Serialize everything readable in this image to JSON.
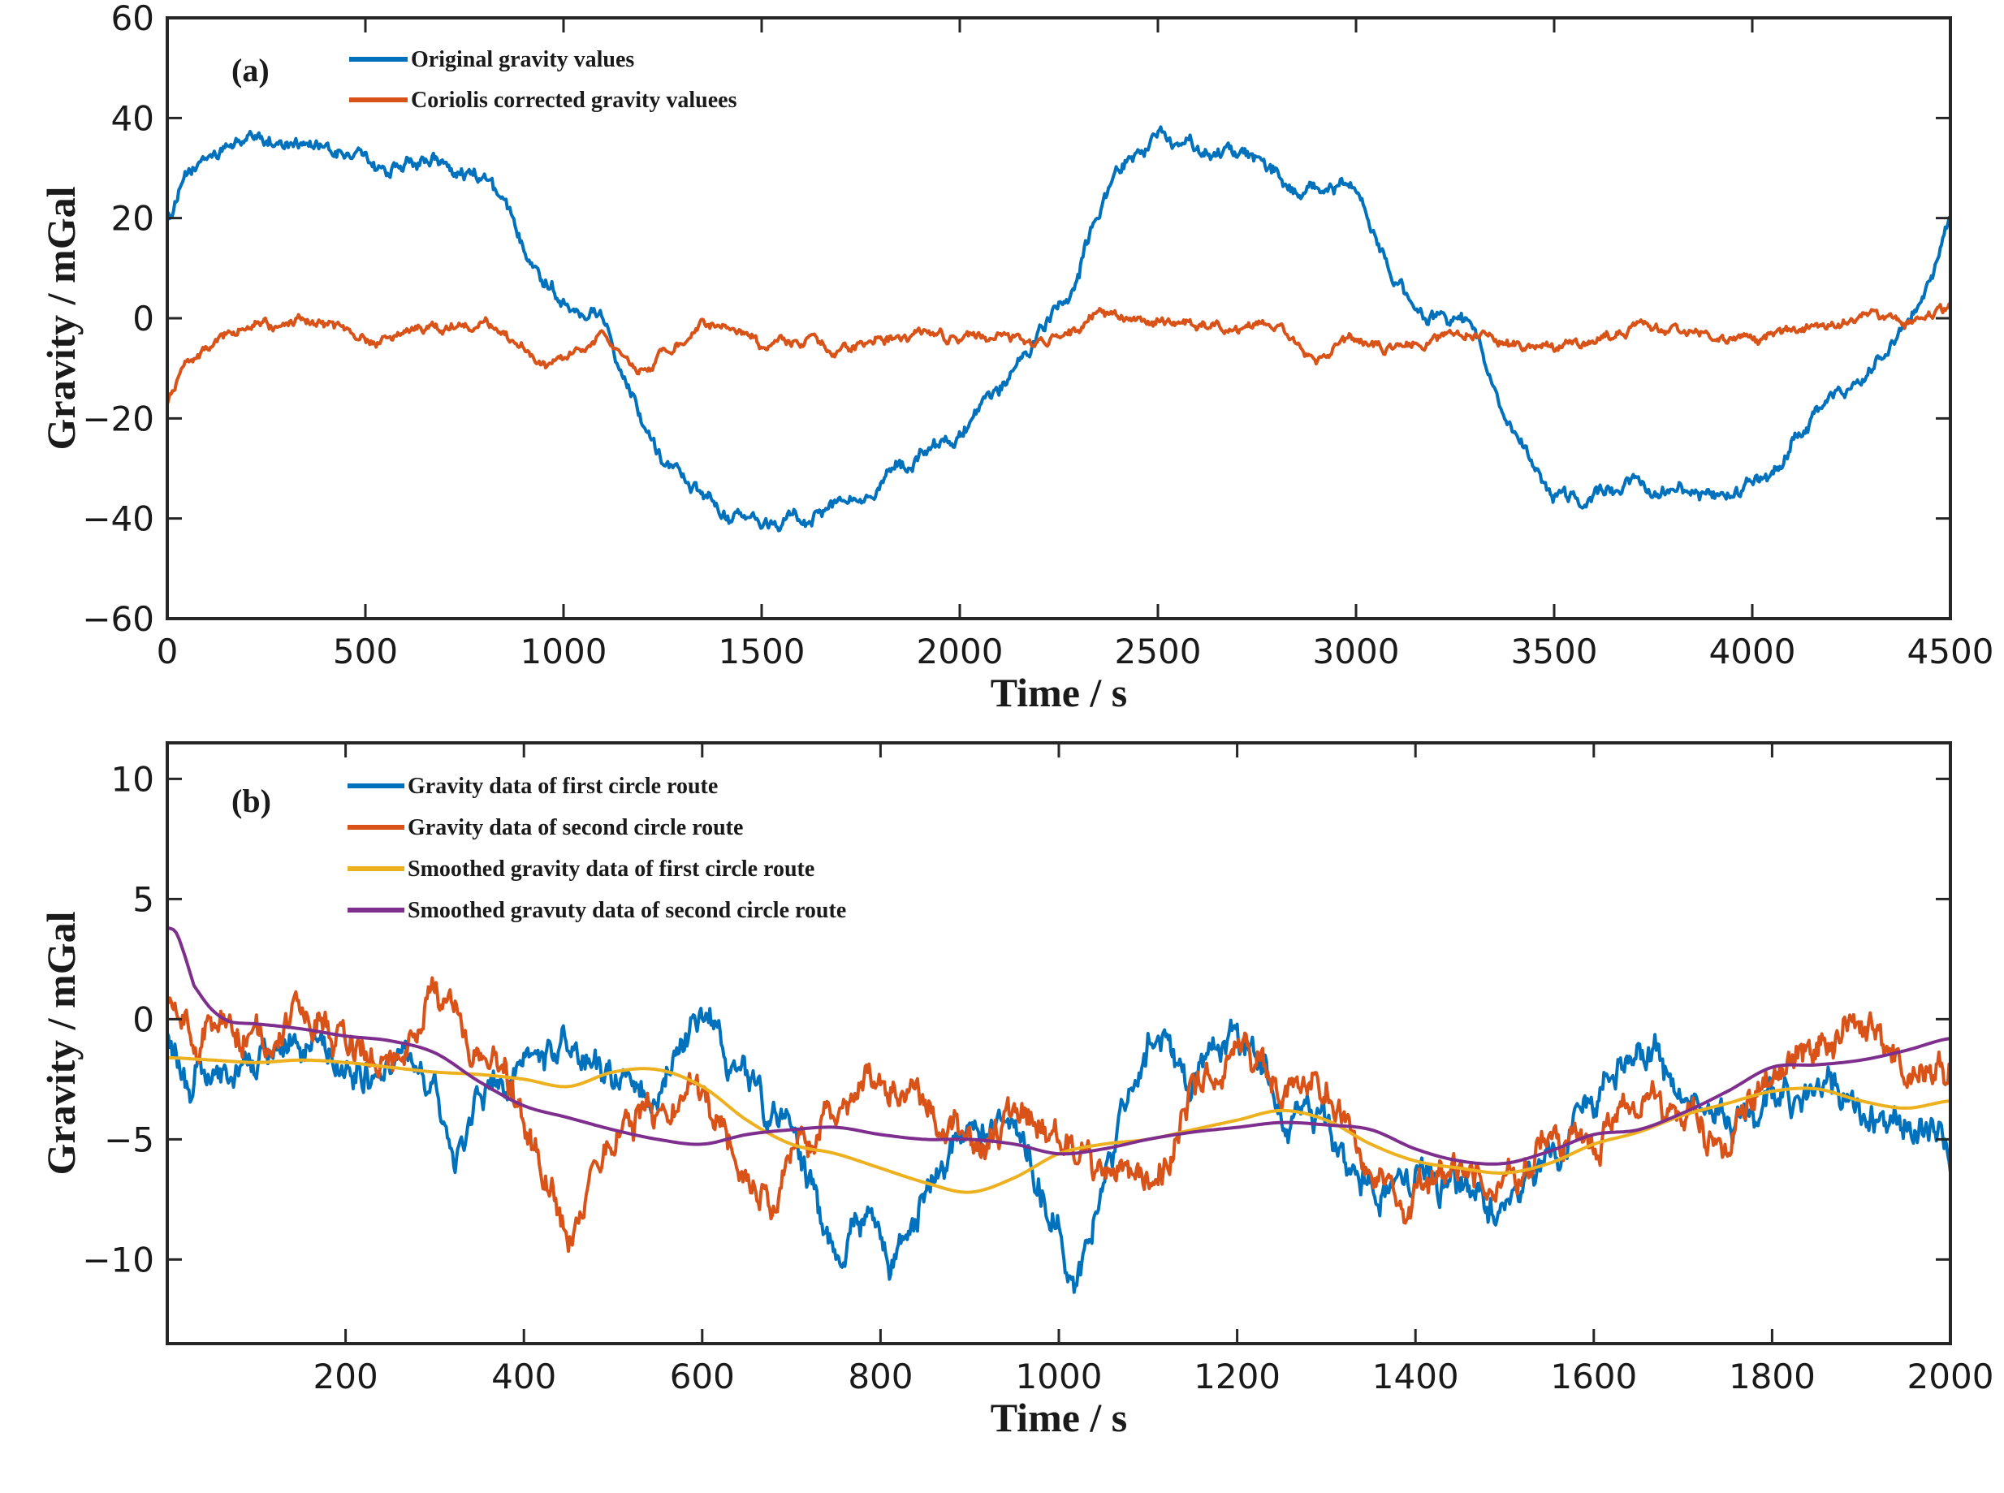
{
  "chart_data": [
    {
      "type": "line",
      "panel_label": "(a)",
      "title": "",
      "xlabel": "Time / s",
      "ylabel": "Gravity / mGal",
      "xlim": [
        0,
        4500
      ],
      "ylim": [
        -60,
        60
      ],
      "xticks": [
        0,
        500,
        1000,
        1500,
        2000,
        2500,
        3000,
        3500,
        4000,
        4500
      ],
      "yticks": [
        -60,
        -40,
        -20,
        0,
        20,
        40,
        60
      ],
      "legend_position": "top-left",
      "series": [
        {
          "name": "Original gravity values",
          "color": "#0072BD",
          "noise": 1.6,
          "x": [
            0,
            50,
            100,
            200,
            300,
            350,
            400,
            500,
            550,
            600,
            700,
            800,
            850,
            900,
            950,
            1000,
            1050,
            1100,
            1150,
            1200,
            1250,
            1300,
            1350,
            1400,
            1500,
            1550,
            1600,
            1700,
            1800,
            1900,
            2000,
            2050,
            2100,
            2150,
            2200,
            2250,
            2300,
            2350,
            2400,
            2500,
            2600,
            2700,
            2800,
            2850,
            2900,
            3000,
            3050,
            3100,
            3150,
            3200,
            3250,
            3300,
            3350,
            3400,
            3450,
            3500,
            3550,
            3600,
            3700,
            3750,
            3800,
            3900,
            4000,
            4050,
            4100,
            4150,
            4200,
            4250,
            4300,
            4350,
            4400,
            4450,
            4500
          ],
          "values": [
            20,
            28,
            32,
            36,
            35,
            36,
            33,
            32,
            29,
            31,
            31,
            28,
            22,
            15,
            8,
            4,
            2,
            0,
            -10,
            -20,
            -28,
            -31,
            -36,
            -39,
            -42,
            -41,
            -40,
            -37,
            -32,
            -28,
            -24,
            -20,
            -15,
            -8,
            -3,
            2,
            10,
            22,
            30,
            36,
            34,
            33,
            29,
            25,
            26,
            25,
            17,
            8,
            2,
            0,
            0,
            -3,
            -14,
            -24,
            -30,
            -35,
            -37,
            -36,
            -32,
            -35,
            -34,
            -36,
            -34,
            -32,
            -25,
            -20,
            -15,
            -14,
            -10,
            -5,
            0,
            8,
            20
          ]
        },
        {
          "name": "Coriolis corrected gravity valuees",
          "color": "#D95319",
          "noise": 1.1,
          "x": [
            0,
            50,
            100,
            200,
            300,
            350,
            400,
            500,
            600,
            700,
            800,
            900,
            950,
            1000,
            1100,
            1150,
            1200,
            1300,
            1350,
            1400,
            1500,
            1600,
            1700,
            1800,
            1900,
            2000,
            2100,
            2200,
            2300,
            2350,
            2400,
            2500,
            2600,
            2700,
            2800,
            2900,
            3000,
            3100,
            3200,
            3300,
            3400,
            3500,
            3600,
            3700,
            3800,
            3900,
            4000,
            4100,
            4200,
            4300,
            4400,
            4500
          ],
          "values": [
            -17,
            -9,
            -6,
            -2,
            -1,
            0,
            -1,
            -5,
            -2,
            -2,
            -1,
            -6,
            -10,
            -9,
            -3,
            -8,
            -10,
            -4,
            -1,
            -2,
            -5,
            -5,
            -6,
            -4,
            -3,
            -4,
            -3,
            -5,
            -2,
            3,
            0,
            -1,
            -1,
            -2,
            -1,
            -8,
            -4,
            -6,
            -4,
            -3,
            -5,
            -6,
            -4,
            -2,
            -2,
            -4,
            -4,
            -2,
            -1,
            0,
            -1,
            2
          ]
        }
      ]
    },
    {
      "type": "line",
      "panel_label": "(b)",
      "title": "",
      "xlabel": "Time / s",
      "ylabel": "Gravity / mGal",
      "xlim": [
        0,
        2000
      ],
      "ylim": [
        -13.5,
        11.5
      ],
      "xticks": [
        200,
        400,
        600,
        800,
        1000,
        1200,
        1400,
        1600,
        1800,
        2000
      ],
      "yticks": [
        -10,
        -5,
        0,
        5,
        10
      ],
      "legend_position": "top-left",
      "series": [
        {
          "name": "Gravity data of first circle route",
          "color": "#0072BD",
          "noise": 0.8,
          "x": [
            0,
            25,
            50,
            100,
            150,
            200,
            250,
            300,
            320,
            350,
            400,
            450,
            500,
            550,
            600,
            650,
            700,
            720,
            750,
            780,
            810,
            850,
            900,
            950,
            1000,
            1020,
            1040,
            1080,
            1110,
            1140,
            1180,
            1200,
            1250,
            1300,
            1350,
            1400,
            1450,
            1500,
            1550,
            1600,
            1650,
            1700,
            1750,
            1800,
            1850,
            1900,
            1950,
            2000
          ],
          "values": [
            -1,
            -2.5,
            -2,
            -2,
            -1,
            -2,
            -1.5,
            -3,
            -6,
            -3,
            -1.5,
            -1,
            -2,
            -3,
            0,
            -2,
            -5,
            -7,
            -10,
            -8,
            -10,
            -7,
            -5,
            -4,
            -9,
            -11,
            -8,
            -3,
            0,
            -3,
            -1,
            -1,
            -3,
            -5,
            -7,
            -6.5,
            -7,
            -8,
            -6,
            -4,
            -1,
            -3,
            -4,
            -3,
            -3,
            -4,
            -4,
            -5.5
          ]
        },
        {
          "name": "Gravity data of second circle route",
          "color": "#D95319",
          "noise": 0.8,
          "x": [
            0,
            25,
            50,
            100,
            150,
            200,
            250,
            300,
            320,
            350,
            380,
            400,
            420,
            450,
            470,
            500,
            550,
            600,
            650,
            680,
            700,
            750,
            800,
            850,
            900,
            950,
            1000,
            1050,
            1100,
            1150,
            1200,
            1250,
            1300,
            1350,
            1400,
            1450,
            1500,
            1550,
            1600,
            1650,
            1700,
            1750,
            1800,
            1850,
            1900,
            1950,
            2000
          ],
          "values": [
            1,
            -0.5,
            0,
            -1,
            0,
            -1,
            -2,
            1.5,
            0,
            -1,
            -2,
            -4,
            -6,
            -9,
            -7,
            -5,
            -4,
            -3,
            -6,
            -8,
            -5,
            -4,
            -2,
            -4,
            -5,
            -4,
            -5,
            -6,
            -7,
            -3,
            -1,
            -3,
            -3,
            -7,
            -7,
            -6,
            -7,
            -5,
            -5,
            -4,
            -4,
            -5,
            -2,
            -1,
            0,
            -2,
            -2
          ]
        },
        {
          "name": "Smoothed gravity data of first circle route",
          "color": "#EDB120",
          "noise": 0,
          "x": [
            0,
            50,
            100,
            150,
            200,
            250,
            300,
            350,
            400,
            450,
            500,
            550,
            600,
            650,
            700,
            750,
            800,
            850,
            900,
            950,
            1000,
            1050,
            1100,
            1150,
            1200,
            1250,
            1300,
            1350,
            1400,
            1450,
            1500,
            1550,
            1600,
            1650,
            1700,
            1750,
            1800,
            1850,
            1900,
            1950,
            2000
          ],
          "values": [
            -1.6,
            -1.7,
            -1.8,
            -1.7,
            -1.8,
            -2.0,
            -2.2,
            -2.3,
            -2.5,
            -2.8,
            -2.2,
            -2.1,
            -2.8,
            -4.2,
            -5.2,
            -5.6,
            -6.2,
            -6.8,
            -7.2,
            -6.6,
            -5.6,
            -5.2,
            -5.0,
            -4.6,
            -4.2,
            -3.8,
            -4.2,
            -5.2,
            -5.9,
            -6.2,
            -6.4,
            -6.0,
            -5.2,
            -4.7,
            -4.0,
            -3.5,
            -3.0,
            -2.9,
            -3.4,
            -3.7,
            -3.4
          ]
        },
        {
          "name": "Smoothed gravuty data of second circle route",
          "color": "#7E2F8E",
          "noise": 0,
          "x": [
            0,
            10,
            20,
            30,
            50,
            70,
            100,
            150,
            200,
            250,
            300,
            350,
            400,
            450,
            500,
            550,
            600,
            650,
            700,
            750,
            800,
            850,
            900,
            950,
            1000,
            1050,
            1100,
            1150,
            1200,
            1250,
            1300,
            1350,
            1400,
            1450,
            1500,
            1550,
            1600,
            1650,
            1700,
            1750,
            1800,
            1850,
            1900,
            1950,
            2000
          ],
          "values": [
            3.8,
            3.6,
            2.6,
            1.4,
            0.4,
            -0.1,
            -0.2,
            -0.4,
            -0.7,
            -0.9,
            -1.4,
            -2.6,
            -3.6,
            -4.1,
            -4.6,
            -5.0,
            -5.2,
            -4.8,
            -4.6,
            -4.5,
            -4.8,
            -5.0,
            -5.0,
            -5.2,
            -5.6,
            -5.4,
            -5.0,
            -4.7,
            -4.5,
            -4.3,
            -4.4,
            -4.6,
            -5.4,
            -5.9,
            -6.0,
            -5.5,
            -4.8,
            -4.6,
            -3.9,
            -3.0,
            -2.0,
            -1.9,
            -1.7,
            -1.3,
            -0.8
          ]
        }
      ]
    }
  ]
}
